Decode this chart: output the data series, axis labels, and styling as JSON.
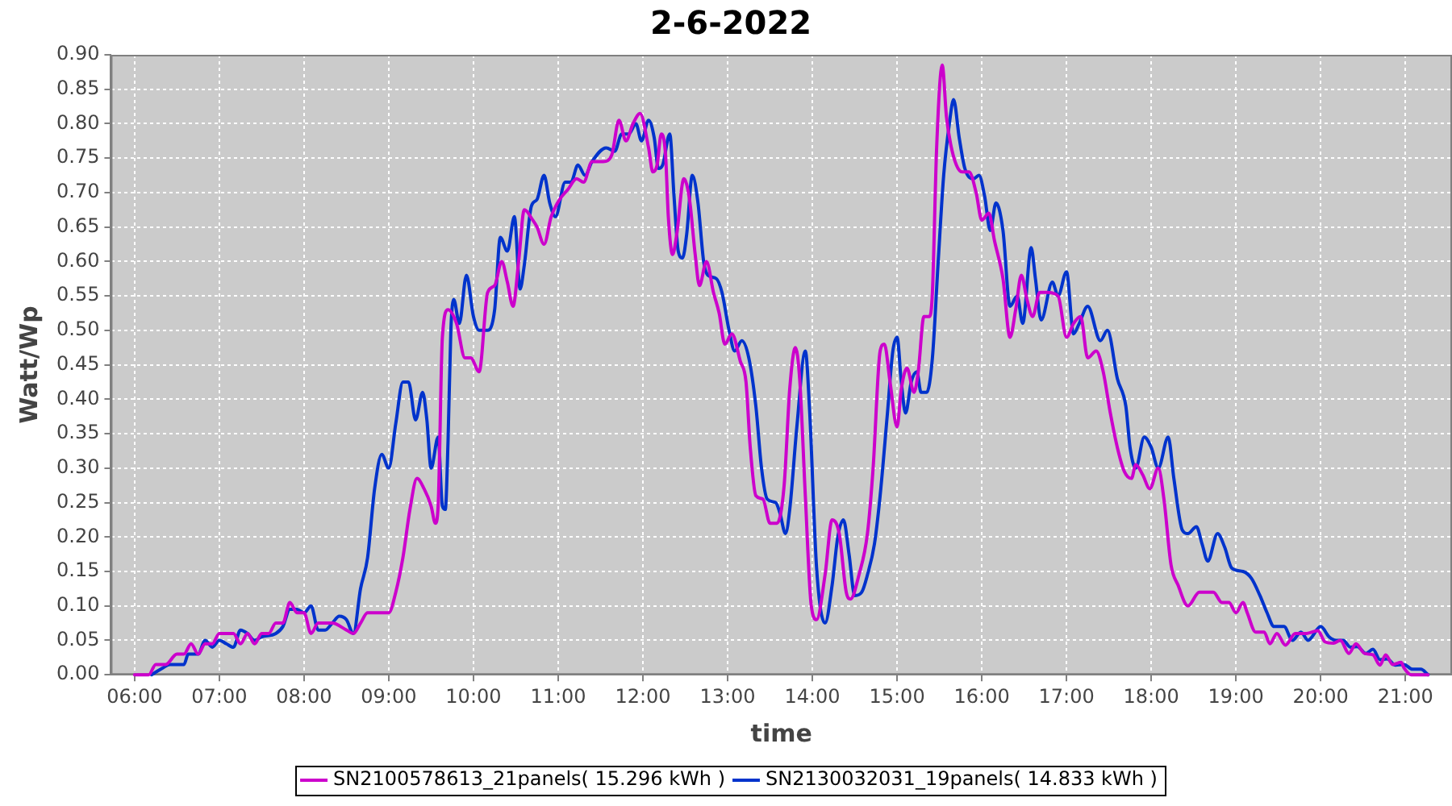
{
  "chart_data": {
    "type": "line",
    "title": "2-6-2022",
    "xlabel": "time",
    "ylabel": "Watt/Wp",
    "xlim": [
      5.72,
      21.55
    ],
    "xticks": [
      {
        "value": 6,
        "label": "06:00"
      },
      {
        "value": 7,
        "label": "07:00"
      },
      {
        "value": 8,
        "label": "08:00"
      },
      {
        "value": 9,
        "label": "09:00"
      },
      {
        "value": 10,
        "label": "10:00"
      },
      {
        "value": 11,
        "label": "11:00"
      },
      {
        "value": 12,
        "label": "12:00"
      },
      {
        "value": 13,
        "label": "13:00"
      },
      {
        "value": 14,
        "label": "14:00"
      },
      {
        "value": 15,
        "label": "15:00"
      },
      {
        "value": 16,
        "label": "16:00"
      },
      {
        "value": 17,
        "label": "17:00"
      },
      {
        "value": 18,
        "label": "18:00"
      },
      {
        "value": 19,
        "label": "19:00"
      },
      {
        "value": 20,
        "label": "20:00"
      },
      {
        "value": 21,
        "label": "21:00"
      }
    ],
    "ylim": [
      0,
      0.9
    ],
    "yticks": [
      {
        "value": 0,
        "label": "0.00"
      },
      {
        "value": 0.05,
        "label": "0.05"
      },
      {
        "value": 0.1,
        "label": "0.10"
      },
      {
        "value": 0.15,
        "label": "0.15"
      },
      {
        "value": 0.2,
        "label": "0.20"
      },
      {
        "value": 0.25,
        "label": "0.25"
      },
      {
        "value": 0.3,
        "label": "0.30"
      },
      {
        "value": 0.35,
        "label": "0.35"
      },
      {
        "value": 0.4,
        "label": "0.40"
      },
      {
        "value": 0.45,
        "label": "0.45"
      },
      {
        "value": 0.5,
        "label": "0.50"
      },
      {
        "value": 0.55,
        "label": "0.55"
      },
      {
        "value": 0.6,
        "label": "0.60"
      },
      {
        "value": 0.65,
        "label": "0.65"
      },
      {
        "value": 0.7,
        "label": "0.70"
      },
      {
        "value": 0.75,
        "label": "0.75"
      },
      {
        "value": 0.8,
        "label": "0.80"
      },
      {
        "value": 0.85,
        "label": "0.85"
      },
      {
        "value": 0.9,
        "label": "0.90"
      }
    ],
    "grid": true,
    "legend": "bottom",
    "series": [
      {
        "name": "SN2100578613_21panels( 15.296 kWh )",
        "color": "#cc00cc",
        "x": [
          6.0,
          6.167,
          6.25,
          6.367,
          6.5,
          6.583,
          6.667,
          6.75,
          6.833,
          6.917,
          7.0,
          7.167,
          7.25,
          7.333,
          7.417,
          7.5,
          7.583,
          7.667,
          7.75,
          7.833,
          7.917,
          8.0,
          8.083,
          8.167,
          8.333,
          8.5,
          8.583,
          8.667,
          8.75,
          9.0,
          9.083,
          9.167,
          9.25,
          9.333,
          9.417,
          9.5,
          9.55,
          9.583,
          9.633,
          9.7,
          9.8,
          9.9,
          9.967,
          10.067,
          10.167,
          10.25,
          10.333,
          10.4,
          10.467,
          10.533,
          10.6,
          10.7,
          10.75,
          10.833,
          10.917,
          11.017,
          11.117,
          11.217,
          11.3,
          11.4,
          11.533,
          11.633,
          11.717,
          11.8,
          11.883,
          11.967,
          12.067,
          12.117,
          12.167,
          12.217,
          12.267,
          12.3,
          12.35,
          12.4,
          12.483,
          12.55,
          12.617,
          12.667,
          12.75,
          12.833,
          12.9,
          12.967,
          13.05,
          13.15,
          13.217,
          13.267,
          13.333,
          13.417,
          13.5,
          13.583,
          13.667,
          13.733,
          13.8,
          13.85,
          13.917,
          13.983,
          14.05,
          14.15,
          14.233,
          14.317,
          14.4,
          14.45,
          14.55,
          14.65,
          14.717,
          14.8,
          14.85,
          14.917,
          15.0,
          15.05,
          15.117,
          15.2,
          15.25,
          15.317,
          15.383,
          15.417,
          15.467,
          15.533,
          15.583,
          15.633,
          15.7,
          15.767,
          15.85,
          15.933,
          16.0,
          16.083,
          16.15,
          16.25,
          16.333,
          16.4,
          16.467,
          16.533,
          16.6,
          16.683,
          16.767,
          16.9,
          17.0,
          17.083,
          17.167,
          17.25,
          17.35,
          17.433,
          17.517,
          17.6,
          17.683,
          17.767,
          17.817,
          17.9,
          17.983,
          18.083,
          18.15,
          18.233,
          18.317,
          18.433,
          18.567,
          18.733,
          18.833,
          18.917,
          19.0,
          19.083,
          19.133,
          19.233,
          19.333,
          19.4,
          19.483,
          19.583,
          19.7,
          19.833,
          19.967,
          20.05,
          20.15,
          20.233,
          20.333,
          20.417,
          20.517,
          20.617,
          20.7,
          20.767,
          20.85,
          20.95,
          20.983,
          21.067,
          21.267
        ],
        "values": [
          0,
          0,
          0.015,
          0.015,
          0.03,
          0.03,
          0.045,
          0.03,
          0.045,
          0.045,
          0.06,
          0.06,
          0.045,
          0.06,
          0.045,
          0.06,
          0.06,
          0.075,
          0.075,
          0.105,
          0.09,
          0.09,
          0.06,
          0.075,
          0.075,
          0.065,
          0.06,
          0.075,
          0.09,
          0.09,
          0.12,
          0.17,
          0.24,
          0.285,
          0.27,
          0.245,
          0.22,
          0.245,
          0.49,
          0.53,
          0.51,
          0.46,
          0.46,
          0.44,
          0.555,
          0.565,
          0.6,
          0.57,
          0.535,
          0.6,
          0.675,
          0.66,
          0.65,
          0.625,
          0.665,
          0.69,
          0.705,
          0.72,
          0.715,
          0.745,
          0.745,
          0.755,
          0.805,
          0.775,
          0.8,
          0.815,
          0.765,
          0.73,
          0.74,
          0.785,
          0.755,
          0.665,
          0.61,
          0.64,
          0.72,
          0.69,
          0.61,
          0.565,
          0.6,
          0.555,
          0.525,
          0.48,
          0.495,
          0.455,
          0.425,
          0.33,
          0.26,
          0.255,
          0.22,
          0.22,
          0.275,
          0.415,
          0.475,
          0.43,
          0.26,
          0.105,
          0.08,
          0.145,
          0.225,
          0.205,
          0.12,
          0.11,
          0.145,
          0.205,
          0.3,
          0.47,
          0.48,
          0.425,
          0.36,
          0.415,
          0.445,
          0.41,
          0.44,
          0.52,
          0.52,
          0.555,
          0.765,
          0.885,
          0.81,
          0.77,
          0.74,
          0.73,
          0.73,
          0.7,
          0.66,
          0.67,
          0.63,
          0.575,
          0.49,
          0.53,
          0.58,
          0.545,
          0.52,
          0.555,
          0.555,
          0.55,
          0.49,
          0.51,
          0.52,
          0.46,
          0.47,
          0.44,
          0.38,
          0.33,
          0.295,
          0.285,
          0.305,
          0.29,
          0.27,
          0.3,
          0.255,
          0.16,
          0.13,
          0.1,
          0.12,
          0.12,
          0.105,
          0.105,
          0.09,
          0.105,
          0.09,
          0.062,
          0.062,
          0.045,
          0.06,
          0.043,
          0.06,
          0.06,
          0.064,
          0.048,
          0.046,
          0.05,
          0.031,
          0.045,
          0.031,
          0.029,
          0.014,
          0.029,
          0.015,
          0.018,
          0.01,
          0,
          0
        ]
      },
      {
        "name": "SN2130032031_19panels( 14.833 kWh )",
        "color": "#0033cc",
        "x": [
          6.2,
          6.333,
          6.417,
          6.583,
          6.633,
          6.75,
          6.833,
          6.917,
          7.0,
          7.083,
          7.167,
          7.25,
          7.333,
          7.417,
          7.5,
          7.667,
          7.75,
          7.833,
          7.917,
          8.0,
          8.083,
          8.167,
          8.25,
          8.333,
          8.417,
          8.5,
          8.583,
          8.667,
          8.75,
          8.833,
          8.917,
          9.0,
          9.083,
          9.167,
          9.233,
          9.317,
          9.4,
          9.45,
          9.5,
          9.583,
          9.633,
          9.667,
          9.7,
          9.733,
          9.767,
          9.833,
          9.917,
          10.0,
          10.067,
          10.167,
          10.25,
          10.317,
          10.4,
          10.483,
          10.55,
          10.6,
          10.683,
          10.75,
          10.833,
          10.9,
          10.967,
          11.083,
          11.15,
          11.233,
          11.317,
          11.4,
          11.567,
          11.667,
          11.75,
          11.833,
          11.917,
          11.983,
          12.067,
          12.133,
          12.183,
          12.233,
          12.317,
          12.367,
          12.417,
          12.467,
          12.517,
          12.583,
          12.65,
          12.717,
          12.767,
          12.867,
          12.933,
          13.017,
          13.083,
          13.167,
          13.25,
          13.333,
          13.4,
          13.467,
          13.567,
          13.617,
          13.683,
          13.733,
          13.817,
          13.917,
          13.967,
          14.05,
          14.15,
          14.233,
          14.3,
          14.367,
          14.433,
          14.5,
          14.583,
          14.65,
          14.733,
          14.8,
          14.883,
          14.95,
          15.0,
          15.05,
          15.1,
          15.167,
          15.233,
          15.283,
          15.35,
          15.417,
          15.483,
          15.55,
          15.617,
          15.667,
          15.733,
          15.8,
          15.9,
          15.967,
          16.033,
          16.1,
          16.167,
          16.25,
          16.333,
          16.417,
          16.483,
          16.583,
          16.633,
          16.7,
          16.833,
          16.9,
          17.0,
          17.083,
          17.15,
          17.25,
          17.4,
          17.483,
          17.6,
          17.7,
          17.75,
          17.817,
          17.917,
          18.0,
          18.083,
          18.2,
          18.267,
          18.367,
          18.433,
          18.533,
          18.6,
          18.667,
          18.783,
          18.867,
          18.95,
          19.083,
          19.183,
          19.283,
          19.367,
          19.45,
          19.567,
          19.667,
          19.767,
          19.85,
          20.0,
          20.1,
          20.183,
          20.267,
          20.35,
          20.433,
          20.533,
          20.617,
          20.7,
          20.783,
          20.883,
          20.983,
          21.083,
          21.183,
          21.267
        ],
        "values": [
          0,
          0.01,
          0.015,
          0.015,
          0.03,
          0.03,
          0.05,
          0.04,
          0.05,
          0.045,
          0.04,
          0.065,
          0.06,
          0.05,
          0.055,
          0.06,
          0.07,
          0.095,
          0.095,
          0.09,
          0.1,
          0.065,
          0.065,
          0.075,
          0.085,
          0.08,
          0.06,
          0.125,
          0.17,
          0.27,
          0.32,
          0.3,
          0.365,
          0.425,
          0.425,
          0.37,
          0.41,
          0.37,
          0.3,
          0.345,
          0.245,
          0.24,
          0.34,
          0.5,
          0.545,
          0.51,
          0.58,
          0.52,
          0.5,
          0.5,
          0.53,
          0.635,
          0.615,
          0.665,
          0.56,
          0.595,
          0.68,
          0.69,
          0.725,
          0.685,
          0.665,
          0.715,
          0.715,
          0.74,
          0.725,
          0.745,
          0.765,
          0.76,
          0.785,
          0.785,
          0.8,
          0.775,
          0.805,
          0.78,
          0.735,
          0.74,
          0.785,
          0.695,
          0.615,
          0.605,
          0.64,
          0.725,
          0.685,
          0.6,
          0.58,
          0.575,
          0.555,
          0.5,
          0.47,
          0.485,
          0.46,
          0.39,
          0.3,
          0.255,
          0.25,
          0.235,
          0.205,
          0.24,
          0.36,
          0.47,
          0.385,
          0.155,
          0.075,
          0.13,
          0.2,
          0.225,
          0.175,
          0.115,
          0.12,
          0.145,
          0.19,
          0.26,
          0.375,
          0.47,
          0.49,
          0.425,
          0.38,
          0.425,
          0.44,
          0.41,
          0.41,
          0.46,
          0.595,
          0.725,
          0.8,
          0.835,
          0.78,
          0.735,
          0.72,
          0.725,
          0.695,
          0.645,
          0.685,
          0.645,
          0.535,
          0.55,
          0.51,
          0.62,
          0.575,
          0.515,
          0.57,
          0.55,
          0.585,
          0.495,
          0.51,
          0.535,
          0.485,
          0.5,
          0.43,
          0.39,
          0.33,
          0.3,
          0.345,
          0.33,
          0.3,
          0.345,
          0.285,
          0.21,
          0.205,
          0.215,
          0.19,
          0.165,
          0.205,
          0.185,
          0.155,
          0.15,
          0.14,
          0.115,
          0.09,
          0.07,
          0.07,
          0.05,
          0.062,
          0.05,
          0.07,
          0.055,
          0.05,
          0.05,
          0.04,
          0.041,
          0.031,
          0.037,
          0.022,
          0.023,
          0.014,
          0.015,
          0.008,
          0.008,
          0
        ]
      }
    ]
  }
}
